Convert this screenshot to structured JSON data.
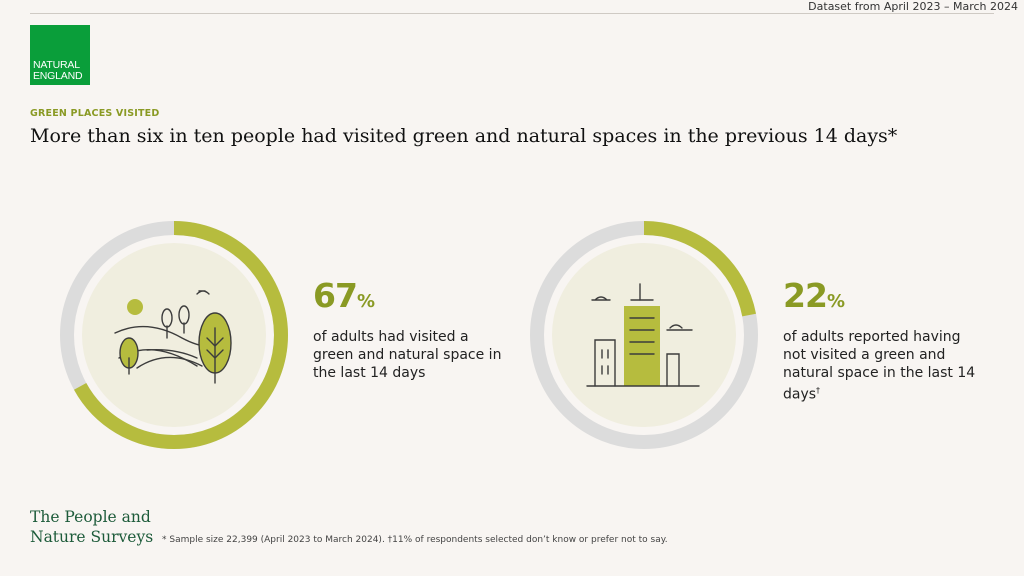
{
  "header": {
    "dataset_label": "Dataset from April 2023 – March 2024",
    "logo_line1": "NATURAL",
    "logo_line2": "ENGLAND",
    "kicker": "GREEN PLACES VISITED",
    "title": "More than six in ten people had visited green and natural spaces in the previous 14 days*"
  },
  "stats": [
    {
      "value": "67",
      "unit": "%",
      "fraction": 0.67,
      "description": "of adults had visited a green and natural space in the last 14 days",
      "icon": "landscape-trees-icon"
    },
    {
      "value": "22",
      "unit": "%",
      "fraction": 0.22,
      "description": "of adults reported having not visited a green and natural space in the last 14 days",
      "footnote_mark": "†",
      "icon": "city-buildings-icon"
    }
  ],
  "footer": {
    "brand_line1": "The People and",
    "brand_line2": "Nature Surveys",
    "footnote": "* Sample size 22,399 (April 2023 to March 2024).  †11% of respondents selected don’t know or prefer not to say."
  },
  "colors": {
    "accent": "#b6bc3e",
    "ring_bg": "#dcdcdc",
    "inner": "#f0eedf",
    "stat_text": "#8a9a24",
    "logo_green": "#0a9e3a"
  }
}
